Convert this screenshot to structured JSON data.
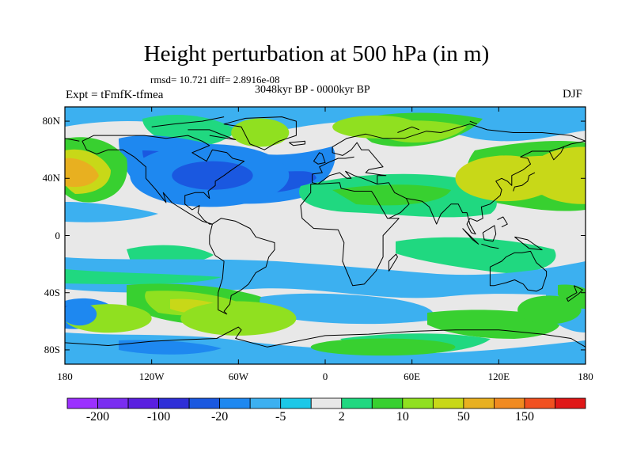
{
  "title": "Height perturbation at 500 hPa (in m)",
  "stats": "rmsd= 10.721 diff= 2.8916e-08",
  "period": "3048kyr BP - 0000kyr BP",
  "experiment": "Expt = tFmfK-tfmea",
  "season": "DJF",
  "map": {
    "projection": "cylindrical equidistant",
    "lon_range": [
      -180,
      180
    ],
    "lat_range": [
      -90,
      90
    ],
    "lat_ticks": [
      {
        "lat": 80,
        "label": "80N"
      },
      {
        "lat": 40,
        "label": "40N"
      },
      {
        "lat": 0,
        "label": "0"
      },
      {
        "lat": -40,
        "label": "40S"
      },
      {
        "lat": -80,
        "label": "80S"
      }
    ],
    "lon_ticks": [
      {
        "lon": -180,
        "label": "180"
      },
      {
        "lon": -120,
        "label": "120W"
      },
      {
        "lon": -60,
        "label": "60W"
      },
      {
        "lon": 0,
        "label": "0"
      },
      {
        "lon": 60,
        "label": "60E"
      },
      {
        "lon": 120,
        "label": "120E"
      },
      {
        "lon": 180,
        "label": "180"
      }
    ]
  },
  "colorbar": {
    "colors": [
      "#9b30ff",
      "#7a2df0",
      "#5a1fe0",
      "#2f2fd8",
      "#1a58e0",
      "#1e88f0",
      "#3cb0f0",
      "#1cc8e8",
      "#e8e8e8",
      "#20d880",
      "#38d030",
      "#90e020",
      "#c8d818",
      "#e8b020",
      "#f08a20",
      "#f05020",
      "#e01818"
    ],
    "labels": [
      {
        "boundary": 1,
        "text": "-200"
      },
      {
        "boundary": 3,
        "text": "-100"
      },
      {
        "boundary": 5,
        "text": "-20"
      },
      {
        "boundary": 7,
        "text": "-5"
      },
      {
        "boundary": 9,
        "text": "2"
      },
      {
        "boundary": 11,
        "text": "10"
      },
      {
        "boundary": 13,
        "text": "50"
      },
      {
        "boundary": 15,
        "text": "150"
      }
    ]
  },
  "field_blobs": [
    {
      "lon": -80,
      "lat": 42,
      "rx": 55,
      "ry": 22,
      "level": 5
    },
    {
      "lon": -78,
      "lat": 42,
      "rx": 28,
      "ry": 10,
      "level": 4
    },
    {
      "lon": 178,
      "lat": 42,
      "rx": 38,
      "ry": 20,
      "level": 12
    },
    {
      "lon": 125,
      "lat": 40,
      "rx": 35,
      "ry": 16,
      "level": 12
    },
    {
      "lon": 35,
      "lat": 76,
      "rx": 30,
      "ry": 8,
      "level": 11
    },
    {
      "lon": -45,
      "lat": 72,
      "rx": 20,
      "ry": 10,
      "level": 11
    },
    {
      "lon": -150,
      "lat": -58,
      "rx": 30,
      "ry": 10,
      "level": 11
    },
    {
      "lon": -60,
      "lat": -58,
      "rx": 40,
      "ry": 12,
      "level": 11
    },
    {
      "lon": 40,
      "lat": -78,
      "rx": 50,
      "ry": 6,
      "level": 10
    },
    {
      "lon": -170,
      "lat": -55,
      "rx": 12,
      "ry": 8,
      "level": 5
    },
    {
      "lon": 155,
      "lat": -52,
      "rx": 22,
      "ry": 10,
      "level": 10
    }
  ],
  "coastlines": [
    [
      [
        -168,
        66
      ],
      [
        -160,
        70
      ],
      [
        -140,
        70
      ],
      [
        -125,
        70
      ],
      [
        -110,
        68
      ],
      [
        -95,
        70
      ],
      [
        -85,
        66
      ],
      [
        -80,
        63
      ],
      [
        -92,
        58
      ],
      [
        -82,
        52
      ],
      [
        -78,
        60
      ],
      [
        -68,
        58
      ],
      [
        -64,
        54
      ],
      [
        -56,
        52
      ],
      [
        -66,
        45
      ],
      [
        -70,
        42
      ],
      [
        -76,
        38
      ],
      [
        -76,
        35
      ],
      [
        -81,
        31
      ],
      [
        -80,
        26
      ],
      [
        -82,
        28
      ],
      [
        -84,
        30
      ],
      [
        -90,
        30
      ],
      [
        -97,
        28
      ],
      [
        -97,
        22
      ],
      [
        -92,
        18
      ],
      [
        -87,
        21
      ],
      [
        -88,
        16
      ],
      [
        -84,
        11
      ],
      [
        -80,
        8
      ],
      [
        -78,
        8
      ],
      [
        -85,
        10
      ],
      [
        -95,
        16
      ],
      [
        -106,
        23
      ],
      [
        -112,
        30
      ],
      [
        -110,
        23
      ],
      [
        -117,
        32
      ],
      [
        -124,
        40
      ],
      [
        -124,
        48
      ],
      [
        -132,
        55
      ],
      [
        -140,
        60
      ],
      [
        -150,
        60
      ],
      [
        -158,
        57
      ],
      [
        -165,
        60
      ],
      [
        -168,
        66
      ]
    ],
    [
      [
        -78,
        8
      ],
      [
        -72,
        12
      ],
      [
        -62,
        10
      ],
      [
        -52,
        5
      ],
      [
        -48,
        -1
      ],
      [
        -35,
        -5
      ],
      [
        -35,
        -10
      ],
      [
        -39,
        -15
      ],
      [
        -41,
        -22
      ],
      [
        -48,
        -26
      ],
      [
        -53,
        -34
      ],
      [
        -58,
        -38
      ],
      [
        -65,
        -42
      ],
      [
        -66,
        -48
      ],
      [
        -70,
        -53
      ],
      [
        -68,
        -55
      ],
      [
        -74,
        -52
      ],
      [
        -74,
        -40
      ],
      [
        -71,
        -30
      ],
      [
        -70,
        -18
      ],
      [
        -76,
        -14
      ],
      [
        -80,
        -6
      ],
      [
        -80,
        0
      ],
      [
        -78,
        8
      ]
    ],
    [
      [
        -55,
        82
      ],
      [
        -30,
        83
      ],
      [
        -20,
        80
      ],
      [
        -20,
        70
      ],
      [
        -32,
        66
      ],
      [
        -42,
        60
      ],
      [
        -52,
        64
      ],
      [
        -58,
        76
      ],
      [
        -70,
        78
      ],
      [
        -55,
        82
      ]
    ],
    [
      [
        -10,
        36
      ],
      [
        -5,
        36
      ],
      [
        10,
        37
      ],
      [
        11,
        33
      ],
      [
        20,
        31
      ],
      [
        32,
        31
      ],
      [
        34,
        28
      ],
      [
        43,
        12
      ],
      [
        51,
        12
      ],
      [
        40,
        0
      ],
      [
        40,
        -15
      ],
      [
        35,
        -25
      ],
      [
        27,
        -34
      ],
      [
        19,
        -35
      ],
      [
        12,
        -18
      ],
      [
        13,
        -5
      ],
      [
        9,
        4
      ],
      [
        -8,
        5
      ],
      [
        -16,
        12
      ],
      [
        -17,
        21
      ],
      [
        -10,
        30
      ],
      [
        -10,
        36
      ]
    ],
    [
      [
        -9,
        43
      ],
      [
        -9,
        37
      ],
      [
        -5,
        36
      ],
      [
        3,
        42
      ],
      [
        10,
        44
      ],
      [
        15,
        40
      ],
      [
        18,
        40
      ],
      [
        14,
        45
      ],
      [
        20,
        42
      ],
      [
        26,
        40
      ],
      [
        36,
        36
      ],
      [
        36,
        42
      ],
      [
        42,
        42
      ],
      [
        28,
        44
      ],
      [
        30,
        46
      ],
      [
        40,
        48
      ],
      [
        30,
        60
      ],
      [
        25,
        60
      ],
      [
        22,
        65
      ],
      [
        18,
        60
      ],
      [
        12,
        56
      ],
      [
        5,
        58
      ],
      [
        5,
        62
      ],
      [
        15,
        68
      ],
      [
        28,
        71
      ],
      [
        40,
        68
      ],
      [
        55,
        68
      ],
      [
        70,
        73
      ],
      [
        80,
        72
      ],
      [
        100,
        78
      ],
      [
        112,
        74
      ],
      [
        130,
        72
      ],
      [
        150,
        72
      ],
      [
        170,
        70
      ],
      [
        180,
        66
      ]
    ],
    [
      [
        -9,
        43
      ],
      [
        -2,
        44
      ],
      [
        -4,
        48
      ],
      [
        2,
        51
      ],
      [
        9,
        54
      ],
      [
        14,
        54
      ],
      [
        20,
        55
      ]
    ],
    [
      [
        36,
        36
      ],
      [
        44,
        37
      ],
      [
        48,
        30
      ],
      [
        56,
        26
      ],
      [
        58,
        22
      ],
      [
        52,
        16
      ],
      [
        44,
        12
      ]
    ],
    [
      [
        56,
        26
      ],
      [
        62,
        25
      ],
      [
        67,
        24
      ],
      [
        72,
        20
      ],
      [
        77,
        8
      ],
      [
        80,
        15
      ],
      [
        87,
        22
      ],
      [
        92,
        22
      ],
      [
        95,
        16
      ],
      [
        98,
        16
      ],
      [
        100,
        8
      ],
      [
        104,
        1
      ],
      [
        101,
        2
      ],
      [
        98,
        8
      ],
      [
        100,
        12
      ],
      [
        105,
        10
      ],
      [
        109,
        12
      ],
      [
        108,
        20
      ],
      [
        114,
        22
      ],
      [
        121,
        28
      ],
      [
        122,
        32
      ],
      [
        118,
        38
      ],
      [
        122,
        40
      ],
      [
        126,
        38
      ],
      [
        129,
        35
      ],
      [
        129,
        42
      ],
      [
        137,
        46
      ],
      [
        142,
        50
      ],
      [
        140,
        54
      ],
      [
        135,
        55
      ],
      [
        143,
        59
      ],
      [
        155,
        59
      ],
      [
        162,
        61
      ],
      [
        170,
        64
      ],
      [
        180,
        66
      ]
    ],
    [
      [
        155,
        59
      ],
      [
        158,
        53
      ],
      [
        163,
        58
      ],
      [
        165,
        62
      ]
    ],
    [
      [
        130,
        31
      ],
      [
        131,
        34
      ],
      [
        136,
        35
      ],
      [
        140,
        38
      ],
      [
        141,
        42
      ],
      [
        145,
        44
      ]
    ],
    [
      [
        114,
        -22
      ],
      [
        114,
        -35
      ],
      [
        117,
        -35
      ],
      [
        125,
        -33
      ],
      [
        131,
        -31
      ],
      [
        137,
        -34
      ],
      [
        140,
        -38
      ],
      [
        146,
        -39
      ],
      [
        150,
        -37
      ],
      [
        153,
        -28
      ],
      [
        153,
        -25
      ],
      [
        146,
        -19
      ],
      [
        142,
        -11
      ],
      [
        136,
        -12
      ],
      [
        131,
        -12
      ],
      [
        125,
        -15
      ],
      [
        122,
        -18
      ],
      [
        114,
        -22
      ]
    ],
    [
      [
        -8,
        52
      ],
      [
        -4,
        58
      ],
      [
        -2,
        57
      ],
      [
        0,
        51
      ],
      [
        -5,
        50
      ],
      [
        -8,
        52
      ]
    ],
    [
      [
        95,
        5
      ],
      [
        102,
        -3
      ],
      [
        106,
        -6
      ],
      [
        101,
        -1
      ],
      [
        95,
        5
      ]
    ],
    [
      [
        108,
        -6
      ],
      [
        114,
        -8
      ],
      [
        120,
        -9
      ]
    ],
    [
      [
        109,
        2
      ],
      [
        110,
        -3
      ],
      [
        116,
        -4
      ],
      [
        118,
        1
      ],
      [
        117,
        7
      ],
      [
        109,
        2
      ]
    ],
    [
      [
        131,
        -1
      ],
      [
        140,
        -3
      ],
      [
        150,
        -10
      ],
      [
        141,
        -9
      ],
      [
        131,
        -1
      ]
    ],
    [
      [
        119,
        11
      ],
      [
        123,
        13
      ],
      [
        126,
        8
      ],
      [
        122,
        6
      ]
    ],
    [
      [
        172,
        -35
      ],
      [
        178,
        -38
      ],
      [
        175,
        -41
      ],
      [
        168,
        -46
      ],
      [
        167,
        -44
      ],
      [
        174,
        -40
      ],
      [
        172,
        -35
      ]
    ],
    [
      [
        44,
        -25
      ],
      [
        50,
        -15
      ],
      [
        49,
        -13
      ],
      [
        44,
        -18
      ],
      [
        44,
        -25
      ]
    ],
    [
      [
        -180,
        -75
      ],
      [
        -150,
        -77
      ],
      [
        -120,
        -74
      ],
      [
        -100,
        -73
      ],
      [
        -75,
        -72
      ],
      [
        -60,
        -64
      ],
      [
        -58,
        -66
      ],
      [
        -62,
        -72
      ],
      [
        -40,
        -78
      ],
      [
        -20,
        -74
      ],
      [
        0,
        -70
      ],
      [
        30,
        -69
      ],
      [
        60,
        -67
      ],
      [
        90,
        -66
      ],
      [
        120,
        -66
      ],
      [
        150,
        -69
      ],
      [
        170,
        -72
      ],
      [
        180,
        -78
      ]
    ],
    [
      [
        -95,
        74
      ],
      [
        -80,
        74
      ],
      [
        -70,
        70
      ],
      [
        -62,
        67
      ],
      [
        -80,
        70
      ]
    ],
    [
      [
        -120,
        76
      ],
      [
        -105,
        78
      ],
      [
        -85,
        80
      ],
      [
        -70,
        83
      ]
    ],
    [
      [
        -180,
        68
      ],
      [
        -170,
        66
      ]
    ],
    [
      [
        -25,
        65
      ],
      [
        -14,
        66
      ],
      [
        -14,
        64
      ],
      [
        -22,
        63
      ],
      [
        -25,
        65
      ]
    ],
    [
      [
        105,
        78
      ],
      [
        100,
        80
      ]
    ],
    [
      [
        50,
        72
      ],
      [
        60,
        76
      ],
      [
        65,
        74
      ]
    ]
  ]
}
